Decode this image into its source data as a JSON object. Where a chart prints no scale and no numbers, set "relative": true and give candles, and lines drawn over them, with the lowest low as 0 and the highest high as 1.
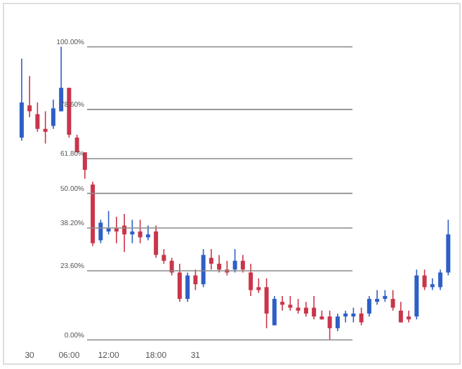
{
  "chart_data": {
    "type": "candlestick",
    "relative": true,
    "categories": [
      null,
      "30",
      null,
      null,
      null,
      null,
      "06:00",
      null,
      null,
      null,
      null,
      "12:00",
      null,
      null,
      null,
      null,
      null,
      "18:00",
      null,
      null,
      null,
      null,
      "31",
      null,
      null,
      null,
      null,
      null,
      null,
      null,
      null,
      null,
      null,
      null,
      null,
      null,
      null,
      null,
      null,
      null,
      null,
      null,
      null,
      null,
      null,
      null,
      null,
      null,
      null,
      null,
      null,
      null,
      null,
      null,
      null
    ],
    "ohlc": [
      [
        0.69,
        0.96,
        0.68,
        0.81
      ],
      [
        0.8,
        0.9,
        0.76,
        0.78
      ],
      [
        0.77,
        0.81,
        0.71,
        0.72
      ],
      [
        0.72,
        0.78,
        0.67,
        0.71
      ],
      [
        0.73,
        0.82,
        0.72,
        0.79
      ],
      [
        0.78,
        1.0,
        0.78,
        0.86
      ],
      [
        0.86,
        0.86,
        0.69,
        0.7
      ],
      [
        0.69,
        0.7,
        0.64,
        0.64
      ],
      [
        0.64,
        0.64,
        0.55,
        0.58
      ],
      [
        0.53,
        0.54,
        0.32,
        0.33
      ],
      [
        0.34,
        0.41,
        0.33,
        0.4
      ],
      [
        0.37,
        0.44,
        0.36,
        0.38
      ],
      [
        0.38,
        0.42,
        0.33,
        0.37
      ],
      [
        0.39,
        0.43,
        0.3,
        0.36
      ],
      [
        0.36,
        0.41,
        0.33,
        0.37
      ],
      [
        0.37,
        0.41,
        0.33,
        0.35
      ],
      [
        0.35,
        0.39,
        0.34,
        0.36
      ],
      [
        0.37,
        0.39,
        0.28,
        0.29
      ],
      [
        0.29,
        0.31,
        0.26,
        0.27
      ],
      [
        0.27,
        0.28,
        0.22,
        0.23
      ],
      [
        0.23,
        0.26,
        0.13,
        0.14
      ],
      [
        0.14,
        0.23,
        0.13,
        0.22
      ],
      [
        0.22,
        0.24,
        0.17,
        0.19
      ],
      [
        0.19,
        0.31,
        0.18,
        0.29
      ],
      [
        0.28,
        0.31,
        0.24,
        0.26
      ],
      [
        0.26,
        0.29,
        0.23,
        0.24
      ],
      [
        0.24,
        0.27,
        0.22,
        0.23
      ],
      [
        0.24,
        0.31,
        0.23,
        0.27
      ],
      [
        0.27,
        0.29,
        0.23,
        0.24
      ],
      [
        0.23,
        0.26,
        0.15,
        0.17
      ],
      [
        0.18,
        0.21,
        0.16,
        0.17
      ],
      [
        0.18,
        0.21,
        0.04,
        0.09
      ],
      [
        0.05,
        0.15,
        0.05,
        0.14
      ],
      [
        0.13,
        0.15,
        0.1,
        0.12
      ],
      [
        0.12,
        0.15,
        0.1,
        0.11
      ],
      [
        0.11,
        0.14,
        0.09,
        0.1
      ],
      [
        0.11,
        0.13,
        0.08,
        0.09
      ],
      [
        0.11,
        0.15,
        0.07,
        0.08
      ],
      [
        0.08,
        0.1,
        0.07,
        0.07
      ],
      [
        0.08,
        0.1,
        0.0,
        0.04
      ],
      [
        0.04,
        0.09,
        0.03,
        0.08
      ],
      [
        0.08,
        0.1,
        0.06,
        0.09
      ],
      [
        0.08,
        0.11,
        0.06,
        0.09
      ],
      [
        0.09,
        0.11,
        0.05,
        0.06
      ],
      [
        0.09,
        0.15,
        0.08,
        0.14
      ],
      [
        0.13,
        0.17,
        0.12,
        0.14
      ],
      [
        0.14,
        0.17,
        0.13,
        0.15
      ],
      [
        0.14,
        0.17,
        0.1,
        0.11
      ],
      [
        0.1,
        0.13,
        0.06,
        0.06
      ],
      [
        0.08,
        0.1,
        0.06,
        0.07
      ],
      [
        0.08,
        0.24,
        0.07,
        0.22
      ],
      [
        0.22,
        0.24,
        0.17,
        0.18
      ],
      [
        0.18,
        0.21,
        0.17,
        0.19
      ],
      [
        0.18,
        0.24,
        0.17,
        0.23
      ],
      [
        0.23,
        0.41,
        0.22,
        0.36
      ]
    ],
    "colors": [
      "#2e5fc7",
      "#c9354a",
      "#c9354a",
      "#c9354a",
      "#2e5fc7",
      "#2e5fc7",
      "#c9354a",
      "#c9354a",
      "#c9354a",
      "#c9354a",
      "#2e5fc7",
      "#2e5fc7",
      "#c9354a",
      "#c9354a",
      "#2e5fc7",
      "#c9354a",
      "#2e5fc7",
      "#c9354a",
      "#c9354a",
      "#c9354a",
      "#c9354a",
      "#2e5fc7",
      "#c9354a",
      "#2e5fc7",
      "#c9354a",
      "#c9354a",
      "#c9354a",
      "#2e5fc7",
      "#c9354a",
      "#c9354a",
      "#c9354a",
      "#c9354a",
      "#2e5fc7",
      "#c9354a",
      "#c9354a",
      "#c9354a",
      "#c9354a",
      "#c9354a",
      "#c9354a",
      "#c9354a",
      "#2e5fc7",
      "#2e5fc7",
      "#2e5fc7",
      "#c9354a",
      "#2e5fc7",
      "#2e5fc7",
      "#2e5fc7",
      "#c9354a",
      "#c9354a",
      "#c9354a",
      "#2e5fc7",
      "#c9354a",
      "#2e5fc7",
      "#2e5fc7",
      "#2e5fc7"
    ],
    "ref_lines": [
      {
        "axis": "y",
        "value": 1,
        "label": "100.00%",
        "color": "#8a8a8a"
      },
      {
        "axis": "y",
        "value": 0.786,
        "label": "78.60%",
        "color": "#8a8a8a"
      },
      {
        "axis": "y",
        "value": 0.618,
        "label": "61.80%",
        "color": "#8a8a8a"
      },
      {
        "axis": "y",
        "value": 0.5,
        "label": "50.00%",
        "color": "#8a8a8a"
      },
      {
        "axis": "y",
        "value": 0.382,
        "label": "38.20%",
        "color": "#8a8a8a"
      },
      {
        "axis": "y",
        "value": 0.236,
        "label": "23.60%",
        "color": "#8a8a8a"
      },
      {
        "axis": "y",
        "value": 0,
        "label": "0.00%",
        "color": "#8a8a8a"
      }
    ]
  }
}
